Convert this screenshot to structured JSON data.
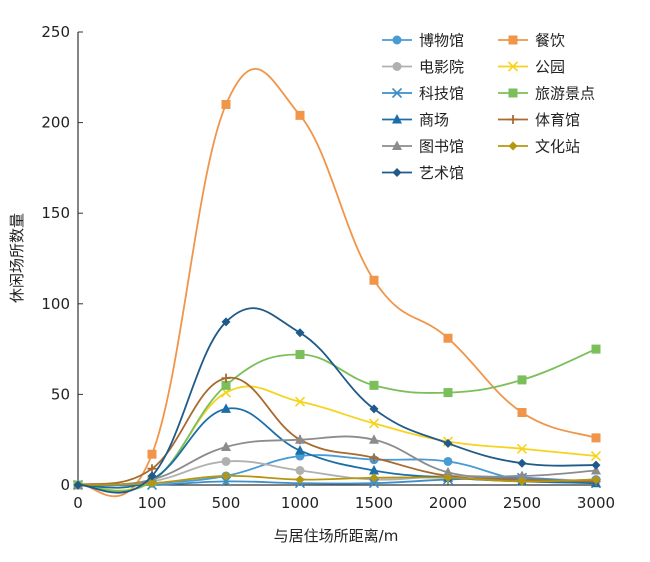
{
  "chart_data": {
    "type": "line",
    "xlabel": "与居住场所距离/m",
    "ylabel": "休闲场所数量",
    "x": [
      0,
      100,
      500,
      1000,
      1500,
      2000,
      2500,
      3000
    ],
    "ylim": [
      0,
      250
    ],
    "yticks": [
      0,
      50,
      100,
      150,
      200,
      250
    ],
    "grid": false,
    "legend_position": "top-right",
    "series": [
      {
        "name": "博物馆",
        "color": "#4a9bd4",
        "marker": "circle",
        "values": [
          0,
          1,
          5,
          16,
          14,
          13,
          3,
          3
        ]
      },
      {
        "name": "餐饮",
        "color": "#f0954a",
        "marker": "square",
        "values": [
          0,
          17,
          210,
          204,
          113,
          81,
          40,
          26
        ]
      },
      {
        "name": "电影院",
        "color": "#b0b0b0",
        "marker": "circle",
        "values": [
          0,
          2,
          13,
          8,
          3,
          5,
          4,
          2
        ]
      },
      {
        "name": "公园",
        "color": "#f5d31e",
        "marker": "x",
        "values": [
          0,
          2,
          51,
          46,
          34,
          24,
          20,
          16
        ]
      },
      {
        "name": "科技馆",
        "color": "#3d8fc9",
        "marker": "x",
        "values": [
          0,
          0,
          2,
          1,
          1,
          3,
          4,
          1
        ]
      },
      {
        "name": "旅游景点",
        "color": "#7bbf5a",
        "marker": "square",
        "values": [
          0,
          2,
          55,
          72,
          55,
          51,
          58,
          75
        ]
      },
      {
        "name": "商场",
        "color": "#1a6fa8",
        "marker": "triangle",
        "values": [
          0,
          3,
          42,
          19,
          8,
          4,
          2,
          1
        ]
      },
      {
        "name": "体育馆",
        "color": "#a86a2e",
        "marker": "plus",
        "values": [
          0,
          9,
          59,
          25,
          15,
          5,
          3,
          2
        ]
      },
      {
        "name": "图书馆",
        "color": "#8c8c8c",
        "marker": "triangle",
        "values": [
          0,
          3,
          21,
          25,
          25,
          7,
          5,
          8
        ]
      },
      {
        "name": "文化站",
        "color": "#b5960e",
        "marker": "diamond",
        "values": [
          0,
          1,
          5,
          3,
          4,
          4,
          2,
          3
        ]
      },
      {
        "name": "艺术馆",
        "color": "#1f5a8a",
        "marker": "diamond",
        "values": [
          0,
          5,
          90,
          84,
          42,
          23,
          12,
          11
        ]
      }
    ]
  }
}
